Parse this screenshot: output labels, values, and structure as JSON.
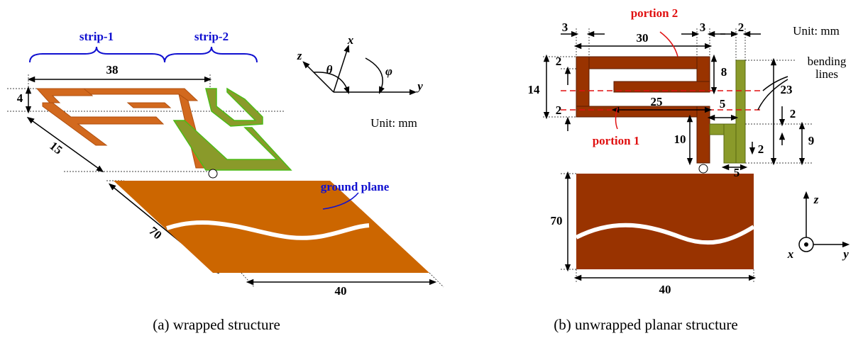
{
  "panel_a": {
    "strip_1": "strip-1",
    "strip_2": "strip-2",
    "dims": [
      "38",
      "4",
      "15",
      "70",
      "40"
    ],
    "ground_plane": "ground plane",
    "axes": {
      "x": "x",
      "y": "y",
      "z": "z",
      "theta": "θ",
      "phi": "φ"
    },
    "unit": "Unit: mm",
    "caption": "(a) wrapped structure"
  },
  "panel_b": {
    "portion_2": "portion 2",
    "portion_1": "portion 1",
    "unit": "Unit: mm",
    "bending_lines": [
      "bending",
      "lines"
    ],
    "dims": [
      "3",
      "30",
      "3",
      "2",
      "2",
      "8",
      "14",
      "2",
      "25",
      "5",
      "23",
      "2",
      "10",
      "9",
      "2",
      "5",
      "70",
      "40"
    ],
    "axes": {
      "z": "z",
      "x": "x",
      "y": "y"
    },
    "caption": "(b) unwrapped planar structure"
  }
}
